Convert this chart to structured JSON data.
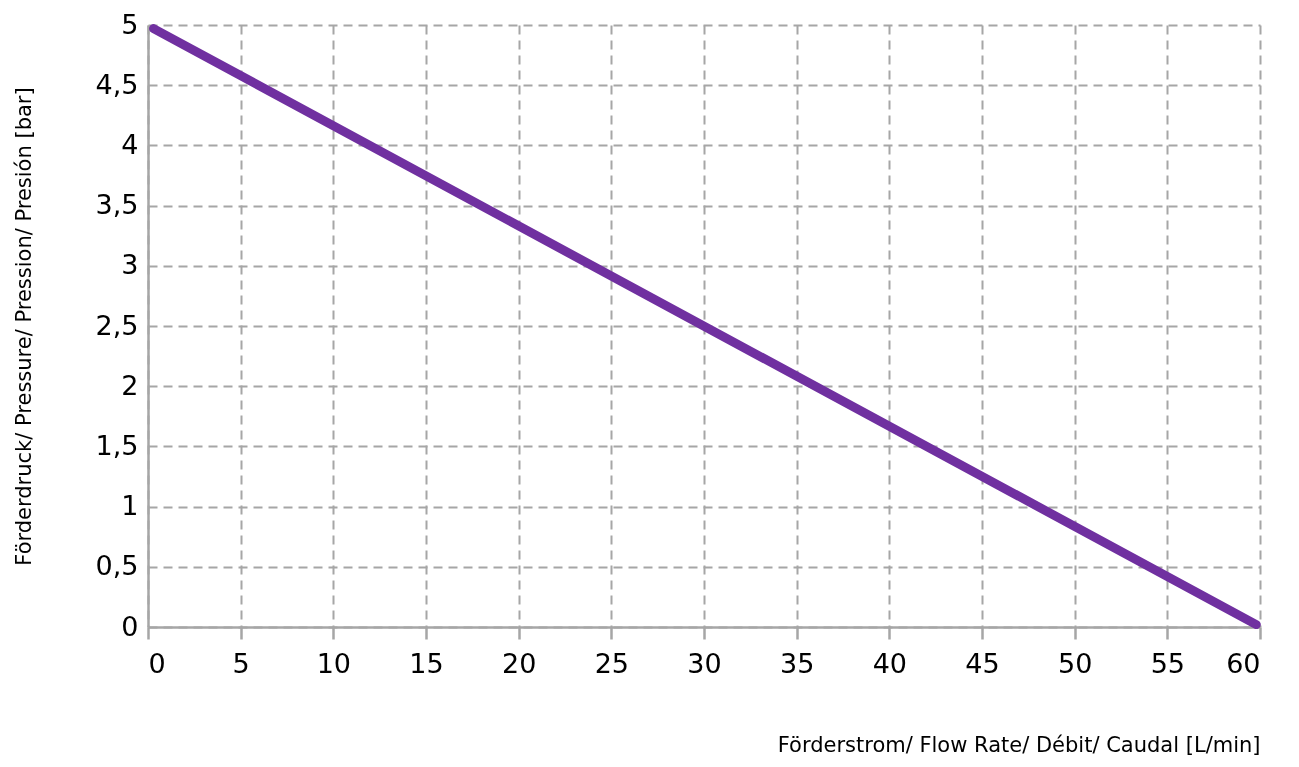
{
  "chart_data": {
    "type": "line",
    "xlabel": "Förderstrom/ Flow Rate/ Débit/ Caudal [L/min]",
    "ylabel": "Förderdruck/ Pressure/ Pression/ Presión [bar]",
    "x": [
      0.3,
      59.8
    ],
    "series": [
      {
        "color": "#7030a0",
        "values": [
          4.97,
          0.02
        ]
      }
    ],
    "xlim": [
      0,
      60
    ],
    "ylim": [
      0,
      5
    ],
    "xticks": [
      0,
      5,
      10,
      15,
      20,
      25,
      30,
      35,
      40,
      45,
      50,
      55,
      60
    ],
    "yticks": [
      0,
      {
        "value": 0.5,
        "label": "0,5"
      },
      1,
      {
        "value": 1.5,
        "label": "1,5"
      },
      2,
      {
        "value": 2.5,
        "label": "2,5"
      },
      3,
      {
        "value": 3.5,
        "label": "3,5"
      },
      4,
      {
        "value": 4.5,
        "label": "4,5"
      },
      5
    ],
    "grid": true,
    "line_style": "solid"
  }
}
